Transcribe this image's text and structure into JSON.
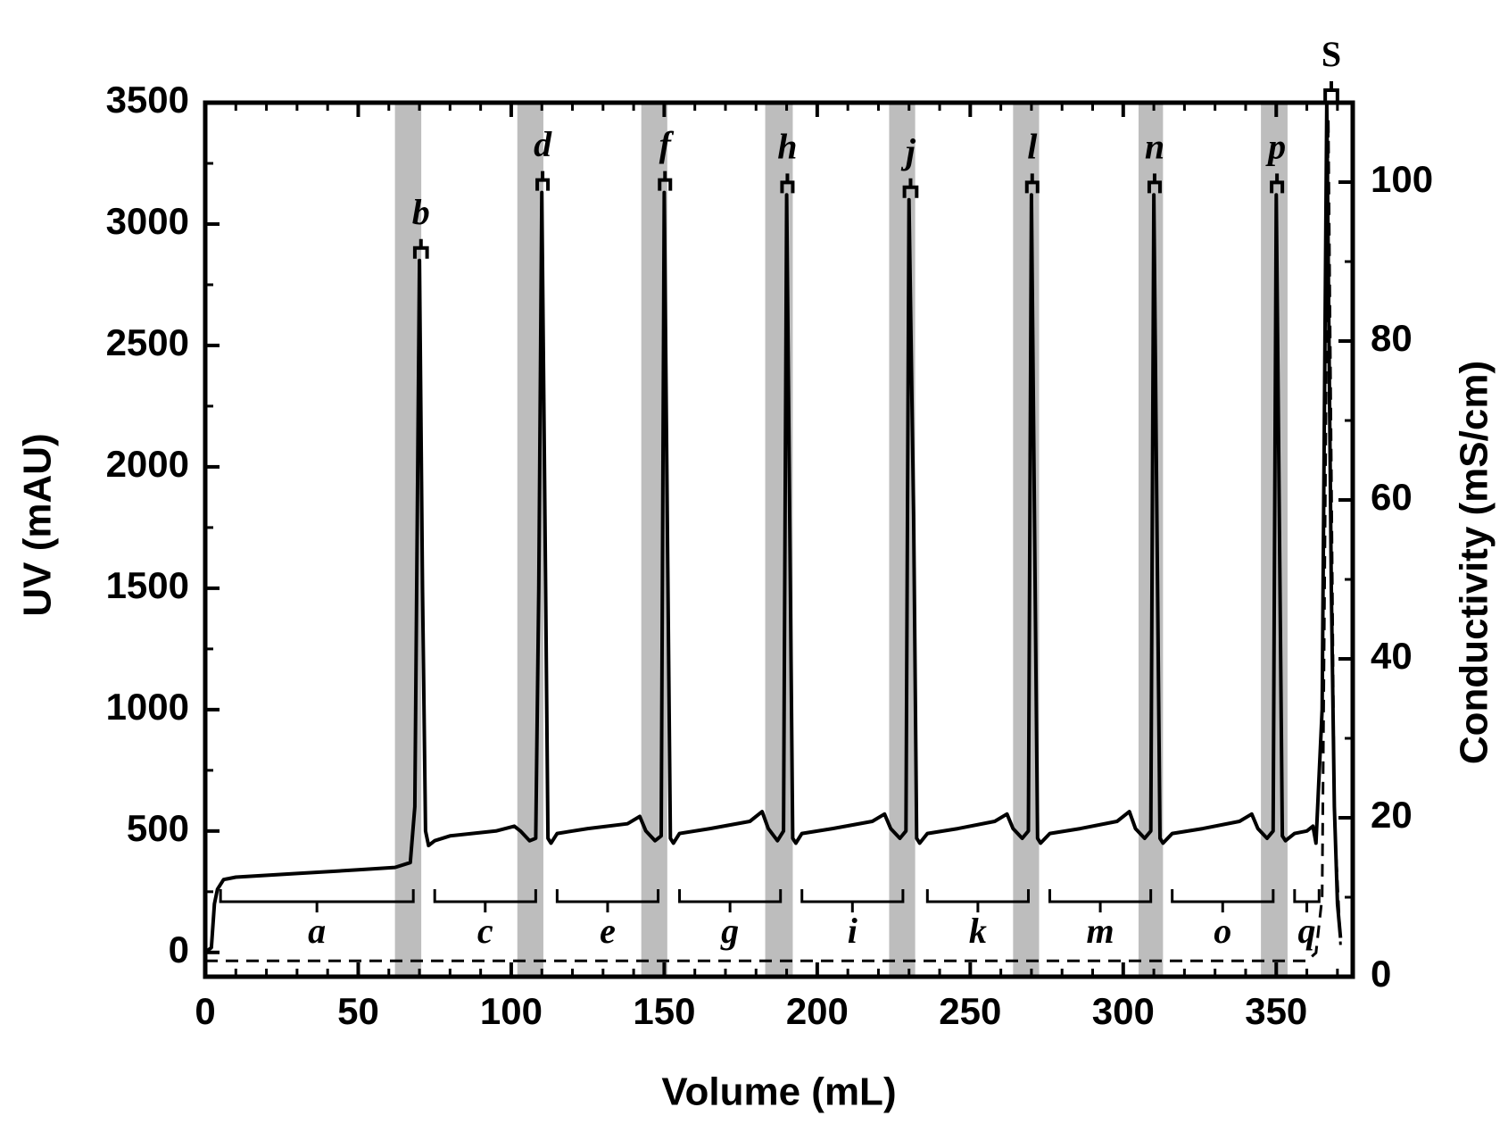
{
  "chart_data": {
    "type": "line",
    "xlabel": "Volume (mL)",
    "ylabel": "UV (mAU)",
    "y2label": "Conductivity (mS/cm)",
    "xlim": [
      0,
      375
    ],
    "xticks": [
      0,
      50,
      100,
      150,
      200,
      250,
      300,
      350
    ],
    "xminor": [
      0,
      10,
      20,
      30,
      40,
      50,
      60,
      70,
      80,
      90,
      100,
      110,
      120,
      130,
      140,
      150,
      160,
      170,
      180,
      190,
      200,
      210,
      220,
      230,
      240,
      250,
      260,
      270,
      280,
      290,
      300,
      310,
      320,
      330,
      340,
      350,
      360,
      370
    ],
    "ylim": [
      -100,
      3500
    ],
    "yticks": [
      0,
      500,
      1000,
      1500,
      2000,
      2500,
      3000,
      3500
    ],
    "yminor": [
      0,
      250,
      500,
      750,
      1000,
      1250,
      1500,
      1750,
      2000,
      2250,
      2500,
      2750,
      3000,
      3250,
      3500
    ],
    "y2lim": [
      0,
      110
    ],
    "y2ticks": [
      0,
      20,
      40,
      60,
      80,
      100
    ],
    "y2minor": [
      0,
      10,
      20,
      30,
      40,
      50,
      60,
      70,
      80,
      90,
      100,
      110
    ],
    "series": [
      {
        "name": "UV",
        "color": "#000000",
        "x": [
          0,
          2,
          3,
          4,
          6,
          10,
          30,
          50,
          62,
          67,
          68.5,
          70,
          71,
          72,
          73,
          75,
          80,
          95,
          101,
          103,
          106,
          108,
          109,
          110,
          111,
          112,
          113,
          115,
          125,
          138,
          142,
          144,
          147,
          149,
          150,
          151,
          152,
          153,
          155,
          165,
          178,
          182,
          184,
          187,
          189,
          190,
          191,
          192,
          193,
          195,
          205,
          218,
          222,
          224,
          227,
          229,
          230,
          231.5,
          232.5,
          233.5,
          236,
          246,
          258,
          262,
          264,
          267,
          269,
          270,
          271,
          272,
          273,
          276,
          286,
          298,
          302,
          304,
          307,
          309,
          310,
          311,
          312,
          313,
          316,
          326,
          338,
          342,
          344,
          347,
          349,
          350,
          351,
          352,
          353,
          356,
          360,
          362,
          363,
          365,
          366.5,
          368,
          369,
          370,
          371
        ],
        "values": [
          0,
          20,
          200,
          260,
          300,
          310,
          325,
          340,
          350,
          370,
          600,
          2850,
          1500,
          500,
          440,
          460,
          480,
          500,
          520,
          500,
          460,
          470,
          1500,
          3130,
          1800,
          470,
          450,
          490,
          510,
          530,
          560,
          500,
          460,
          480,
          3130,
          1800,
          470,
          450,
          490,
          510,
          540,
          580,
          510,
          460,
          500,
          3120,
          1800,
          470,
          450,
          490,
          510,
          540,
          570,
          510,
          470,
          500,
          3100,
          1800,
          470,
          450,
          490,
          510,
          540,
          570,
          510,
          470,
          500,
          3120,
          1800,
          470,
          450,
          490,
          510,
          540,
          580,
          510,
          470,
          500,
          3120,
          1800,
          470,
          450,
          490,
          510,
          540,
          570,
          510,
          470,
          500,
          3120,
          1800,
          480,
          460,
          490,
          500,
          520,
          450,
          1000,
          3500,
          1500,
          600,
          200,
          60
        ]
      },
      {
        "name": "Conductivity",
        "color": "#000000",
        "axis": "y2",
        "dashed": true,
        "x": [
          0,
          360,
          363,
          365,
          367,
          369,
          371
        ],
        "values": [
          2,
          2,
          3,
          10,
          108,
          20,
          4
        ]
      }
    ],
    "shaded_regions": [
      [
        62,
        70.6
      ],
      [
        102,
        110.5
      ],
      [
        142.5,
        151
      ],
      [
        183,
        192
      ],
      [
        223.5,
        232
      ],
      [
        264,
        272.5
      ],
      [
        305,
        313
      ],
      [
        345,
        353.7
      ]
    ],
    "band_color": "#bdbdbd",
    "peak_fractions": [
      {
        "label": "b",
        "range": [
          68.5,
          72.5
        ]
      },
      {
        "label": "d",
        "range": [
          108.5,
          112
        ]
      },
      {
        "label": "f",
        "range": [
          148.5,
          152
        ]
      },
      {
        "label": "h",
        "range": [
          188.5,
          192
        ]
      },
      {
        "label": "j",
        "range": [
          228.5,
          232.5
        ]
      },
      {
        "label": "l",
        "range": [
          268.5,
          272
        ]
      },
      {
        "label": "n",
        "range": [
          308.5,
          312
        ]
      },
      {
        "label": "p",
        "range": [
          348.5,
          352
        ]
      },
      {
        "label": "S",
        "range": [
          366,
          370
        ]
      }
    ],
    "flow_fractions": [
      {
        "label": "a",
        "range": [
          5,
          68
        ]
      },
      {
        "label": "c",
        "range": [
          75,
          108
        ]
      },
      {
        "label": "e",
        "range": [
          115,
          148
        ]
      },
      {
        "label": "g",
        "range": [
          155,
          188
        ]
      },
      {
        "label": "i",
        "range": [
          195,
          228
        ]
      },
      {
        "label": "k",
        "range": [
          236,
          269
        ]
      },
      {
        "label": "m",
        "range": [
          276,
          309
        ]
      },
      {
        "label": "o",
        "range": [
          316,
          349
        ]
      },
      {
        "label": "q",
        "range": [
          356,
          364
        ]
      }
    ]
  }
}
